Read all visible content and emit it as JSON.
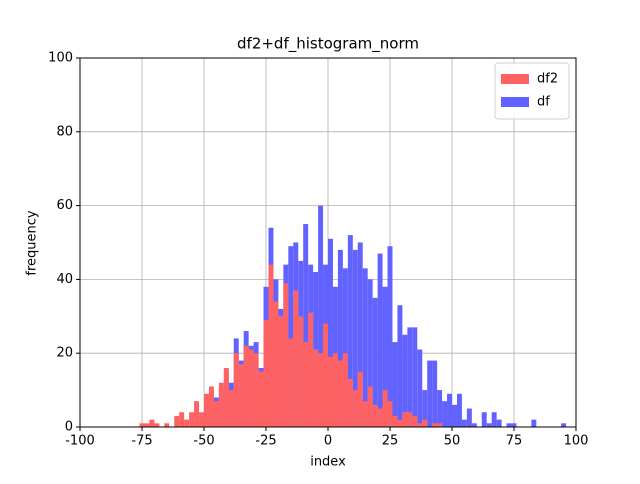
{
  "chart_data": {
    "type": "histogram",
    "title": "df2+df_histogram_norm",
    "x_label": "index",
    "y_label": "frequency",
    "xlim": [
      -100,
      100
    ],
    "ylim": [
      0,
      100
    ],
    "xticks": [
      -100,
      -75,
      -50,
      -25,
      0,
      25,
      50,
      75,
      100
    ],
    "yticks": [
      0,
      20,
      40,
      60,
      80,
      100
    ],
    "grid": true,
    "legend_position": "upper right",
    "series": [
      {
        "name": "df2",
        "color": "#ff6262",
        "bins": [
          -76,
          -74,
          -72,
          -70,
          -68,
          -66,
          -64,
          -62,
          -60,
          -58,
          -56,
          -54,
          -52,
          -50,
          -48,
          -46,
          -44,
          -42,
          -40,
          -38,
          -36,
          -34,
          -32,
          -30,
          -28,
          -26,
          -24,
          -22,
          -20,
          -18,
          -16,
          -14,
          -12,
          -10,
          -8,
          -6,
          -4,
          -2,
          0,
          2,
          4,
          6,
          8,
          10,
          12,
          14,
          16,
          18,
          20,
          22,
          24,
          26,
          28,
          30,
          32,
          34,
          36,
          38,
          40,
          42,
          44,
          46
        ],
        "values": [
          1,
          1,
          2,
          1,
          0,
          1,
          0,
          3,
          4,
          2,
          4,
          7,
          4,
          9,
          11,
          7,
          12,
          16,
          10,
          20,
          17,
          22,
          21,
          20,
          15,
          29,
          44,
          34,
          30,
          39,
          24,
          37,
          30,
          23,
          31,
          21,
          20,
          28,
          19,
          20,
          18,
          20,
          13,
          10,
          15,
          7,
          11,
          6,
          5,
          10,
          7,
          3,
          2,
          4,
          4,
          3,
          1,
          2,
          0,
          1,
          1
        ]
      },
      {
        "name": "df",
        "color": "#6262ff",
        "bins": [
          -50,
          -48,
          -46,
          -44,
          -42,
          -40,
          -38,
          -36,
          -34,
          -32,
          -30,
          -28,
          -26,
          -24,
          -22,
          -20,
          -18,
          -16,
          -14,
          -12,
          -10,
          -8,
          -6,
          -4,
          -2,
          0,
          2,
          4,
          6,
          8,
          10,
          12,
          14,
          16,
          18,
          20,
          22,
          24,
          26,
          28,
          30,
          32,
          34,
          36,
          38,
          40,
          42,
          44,
          46,
          48,
          50,
          52,
          54,
          56,
          58,
          60,
          62,
          64,
          66,
          68,
          70,
          72,
          74,
          76,
          78,
          80,
          82,
          84,
          86,
          88,
          90,
          92,
          94,
          96
        ],
        "values": [
          7,
          10,
          8,
          10,
          15,
          12,
          24,
          18,
          26,
          22,
          23,
          16,
          38,
          54,
          40,
          32,
          44,
          49,
          50,
          45,
          55,
          44,
          42,
          60,
          44,
          51,
          38,
          48,
          43,
          52,
          48,
          50,
          43,
          40,
          35,
          47,
          38,
          49,
          23,
          33,
          25,
          27,
          27,
          21,
          10,
          18,
          18,
          10,
          7,
          9,
          6,
          9,
          2,
          5,
          1,
          0,
          4,
          1,
          4,
          2,
          0,
          1,
          1,
          0,
          0,
          0,
          2,
          0,
          0,
          0,
          0,
          0,
          1
        ]
      }
    ]
  }
}
